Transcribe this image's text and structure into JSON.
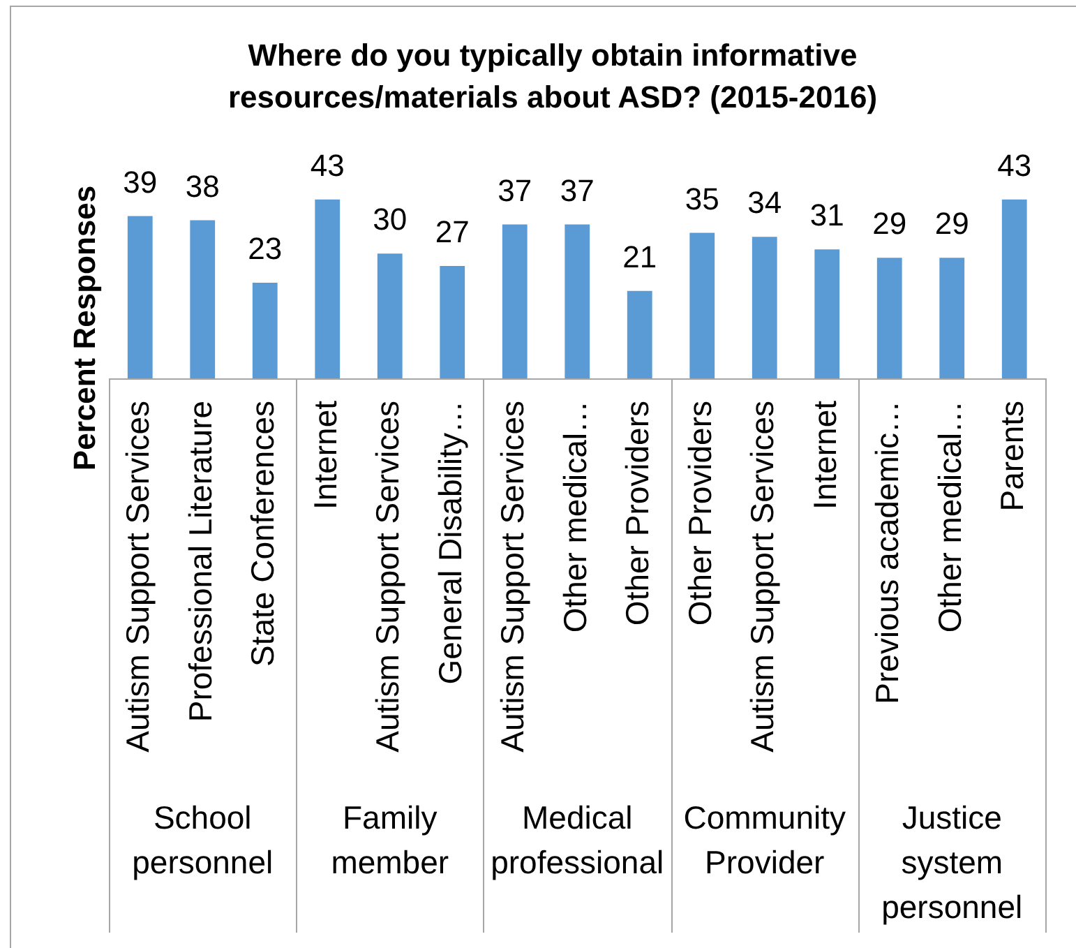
{
  "chart_data": {
    "type": "bar",
    "title": "Where do you typically obtain informative resources/materials about ASD? (2015-2016)",
    "ylabel": "Percent Responses",
    "categories": [
      "Autism Support Services",
      "Professional Literature",
      "State Conferences",
      "Internet",
      "Autism Support Services",
      "General Disability…",
      "Autism Support Services",
      "Other medical…",
      "Other Providers",
      "Other Providers",
      "Autism Support Services",
      "Internet",
      "Previous academic…",
      "Other medical…",
      "Parents"
    ],
    "values": [
      39,
      38,
      23,
      43,
      30,
      27,
      37,
      37,
      21,
      35,
      34,
      31,
      29,
      29,
      43
    ],
    "color": "#5b9bd5",
    "data_labels": true,
    "annotations": [
      "School personnel",
      "Family member",
      "Medical professional",
      "Community Provider",
      "Justice system personnel"
    ],
    "grid": false,
    "legend": false,
    "tick_labels": "x"
  }
}
